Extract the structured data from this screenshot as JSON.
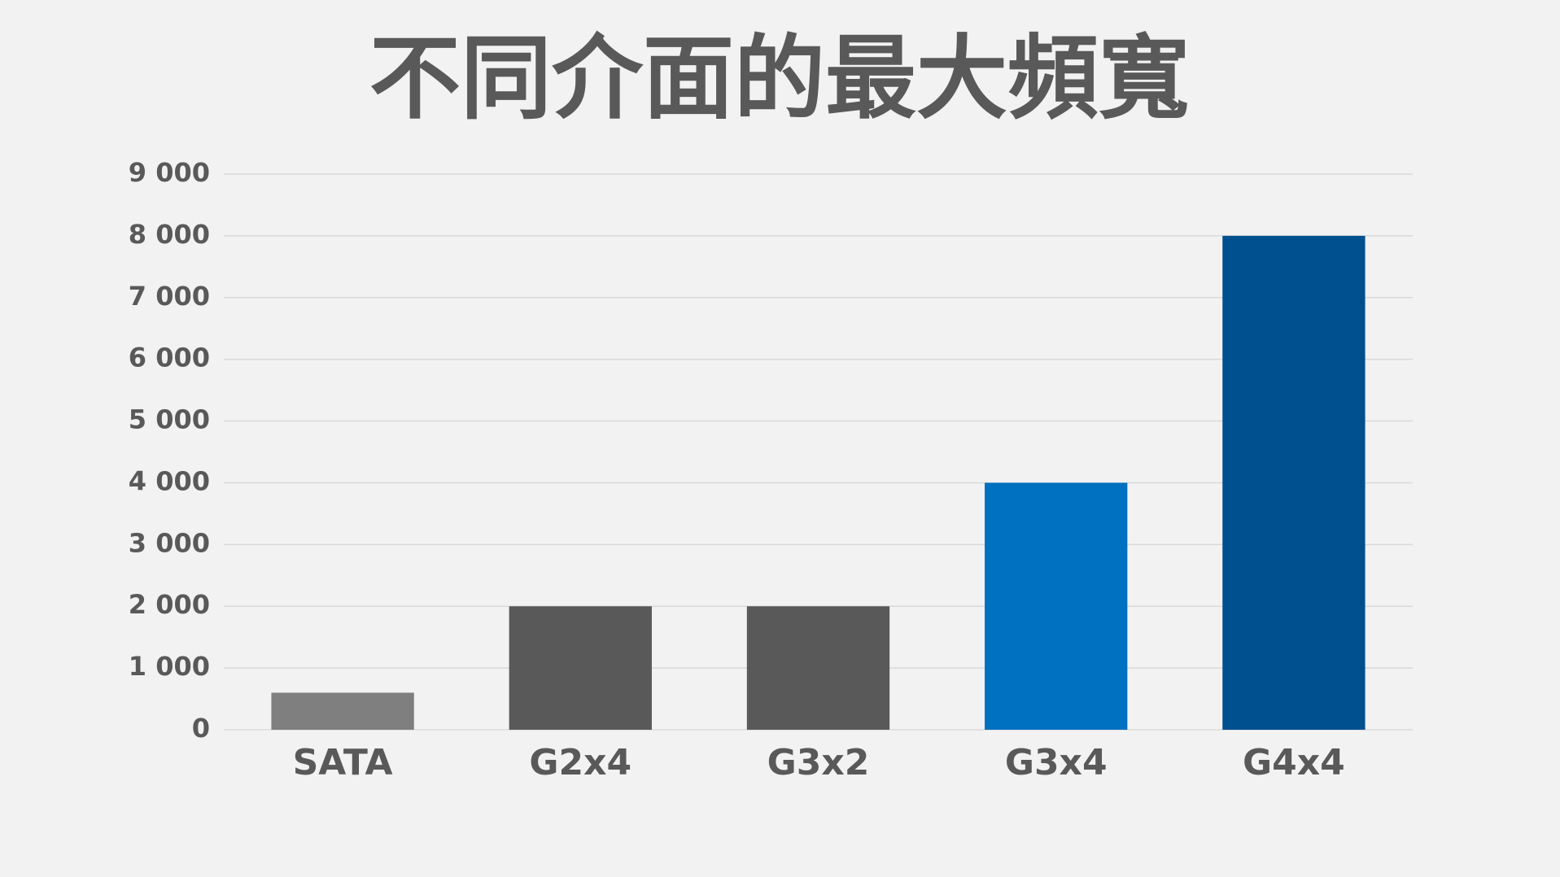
{
  "chart_data": {
    "type": "bar",
    "title": "不同介面的最大頻寬",
    "categories": [
      "SATA",
      "G2x4",
      "G3x2",
      "G3x4",
      "G4x4"
    ],
    "values": [
      600,
      2000,
      2000,
      4000,
      8000
    ],
    "colors": [
      "#7f7f7f",
      "#595959",
      "#595959",
      "#0070c0",
      "#00508f"
    ],
    "ylim": [
      0,
      9000
    ],
    "yticks": [
      0,
      {
        "value": 1000,
        "label": "1 000"
      },
      {
        "value": 2000,
        "label": "2 000"
      },
      {
        "value": 3000,
        "label": "3 000"
      },
      {
        "value": 4000,
        "label": "4 000"
      },
      {
        "value": 5000,
        "label": "5 000"
      },
      {
        "value": 6000,
        "label": "6 000"
      },
      {
        "value": 7000,
        "label": "7 000"
      },
      {
        "value": 8000,
        "label": "8 000"
      },
      {
        "value": 9000,
        "label": "9 000"
      }
    ],
    "grid": true
  }
}
